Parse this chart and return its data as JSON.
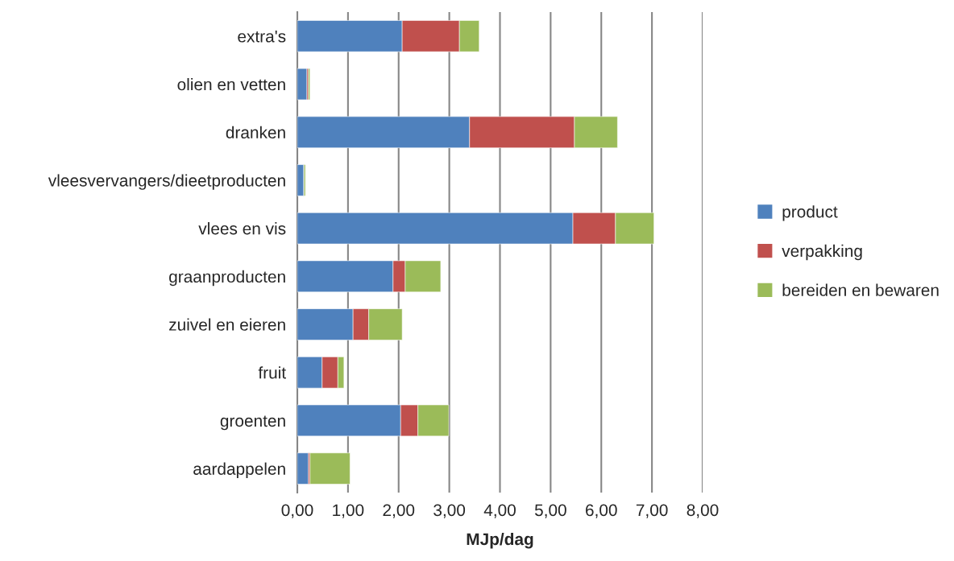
{
  "chart_data": {
    "type": "bar",
    "orientation": "horizontal",
    "stacked": true,
    "xlabel": "MJp/dag",
    "categories": [
      "extra's",
      "olien en vetten",
      "dranken",
      "vleesvervangers/dieetproducten",
      "vlees en vis",
      "graanproducten",
      "zuivel en eieren",
      "fruit",
      "groenten",
      "aardappelen"
    ],
    "series": [
      {
        "name": "product",
        "color": "#4f81bd",
        "values": [
          2.07,
          0.19,
          3.4,
          0.13,
          5.44,
          1.89,
          1.1,
          0.49,
          2.04,
          0.22
        ]
      },
      {
        "name": "verpakking",
        "color": "#c0504d",
        "values": [
          1.13,
          0.03,
          2.07,
          null,
          0.84,
          0.24,
          0.31,
          0.31,
          0.34,
          0.03
        ]
      },
      {
        "name": "bereiden en bewaren",
        "color": "#9bbb59",
        "values": [
          0.39,
          0.03,
          0.85,
          0.03,
          0.76,
          0.7,
          0.66,
          0.12,
          0.61,
          0.79
        ]
      }
    ],
    "xlim": [
      0,
      8
    ],
    "xticks": [
      {
        "value": 0,
        "label": "0,00"
      },
      {
        "value": 1,
        "label": "1,00"
      },
      {
        "value": 2,
        "label": "2,00"
      },
      {
        "value": 3,
        "label": "3,00"
      },
      {
        "value": 4,
        "label": "4,00"
      },
      {
        "value": 5,
        "label": "5,00"
      },
      {
        "value": 6,
        "label": "6,00"
      },
      {
        "value": 7,
        "label": "7,00"
      },
      {
        "value": 8,
        "label": "8,00"
      }
    ],
    "grid": "x",
    "legend": "right"
  }
}
